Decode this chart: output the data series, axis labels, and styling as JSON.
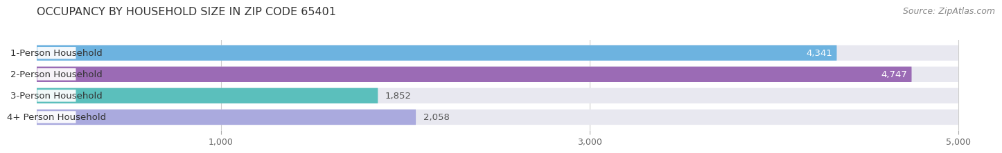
{
  "title": "OCCUPANCY BY HOUSEHOLD SIZE IN ZIP CODE 65401",
  "source": "Source: ZipAtlas.com",
  "categories": [
    "1-Person Household",
    "2-Person Household",
    "3-Person Household",
    "4+ Person Household"
  ],
  "values": [
    4341,
    4747,
    1852,
    2058
  ],
  "bar_colors": [
    "#6db3e0",
    "#9b6bb5",
    "#5bbfbc",
    "#aaaade"
  ],
  "bar_bg_color": "#e8e8f0",
  "xlim_max": 5200,
  "data_max": 5000,
  "xticks": [
    1000,
    3000,
    5000
  ],
  "background_color": "#ffffff",
  "bar_height": 0.72,
  "title_fontsize": 11.5,
  "source_fontsize": 9,
  "label_fontsize": 9.5,
  "tick_fontsize": 9,
  "category_fontsize": 9.5
}
